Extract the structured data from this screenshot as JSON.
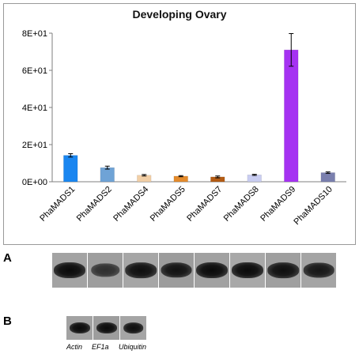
{
  "chart_data": {
    "type": "bar",
    "title": "Developing Ovary",
    "categories": [
      "PhaMADS1",
      "PhaMADS2",
      "PhaMADS4",
      "PhaMADS5",
      "PhaMADS7",
      "PhaMADS8",
      "PhaMADS9",
      "PhaMADS10"
    ],
    "values": [
      14.2,
      7.6,
      3.5,
      3.0,
      2.6,
      3.7,
      71.0,
      4.9
    ],
    "errors": [
      0.9,
      0.8,
      0.4,
      0.3,
      0.5,
      0.3,
      8.8,
      0.4
    ],
    "colors": [
      "#1a86f0",
      "#6fa3d6",
      "#f2cfa6",
      "#e48b2c",
      "#b45c14",
      "#c9cdf1",
      "#a532f2",
      "#7a7fae"
    ],
    "ylim": [
      0,
      80
    ],
    "yticks": [
      0,
      20,
      40,
      60,
      80
    ],
    "ytick_labels": [
      "0E+00",
      "2E+01",
      "4E+01",
      "6E+01",
      "8E+01"
    ],
    "xlabel": "",
    "ylabel": "",
    "grid": false
  },
  "panels": {
    "a_label": "A",
    "b_label": "B"
  },
  "gel_a": {
    "lanes": [
      {
        "intensity": 1.0
      },
      {
        "intensity": 0.55
      },
      {
        "intensity": 0.95
      },
      {
        "intensity": 0.9
      },
      {
        "intensity": 1.0
      },
      {
        "intensity": 1.0
      },
      {
        "intensity": 0.95
      },
      {
        "intensity": 0.85
      }
    ]
  },
  "gel_b": {
    "lanes": [
      {
        "label": "Actin",
        "intensity": 1.0
      },
      {
        "label": "EF1a",
        "intensity": 1.0
      },
      {
        "label": "Ubiquitin",
        "intensity": 0.95
      }
    ]
  }
}
